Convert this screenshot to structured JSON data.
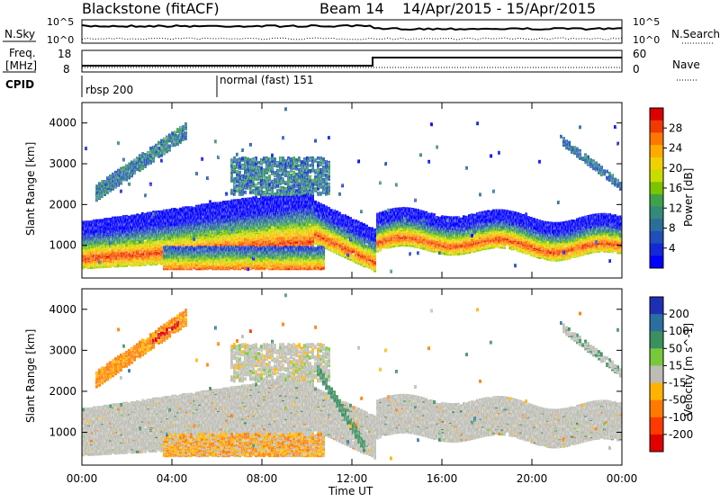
{
  "header": {
    "station": "Blackstone (fitACF)",
    "beam": "Beam 14",
    "period": "14/Apr/2015 - 15/Apr/2015"
  },
  "top_panels": {
    "nsky_label": "N.Sky",
    "nsearch_label": "N.Search",
    "n_ticks_left": [
      "10^5",
      "10^0"
    ],
    "n_ticks_right": [
      "10^5",
      "10^0"
    ],
    "freq_label_1": "Freq.",
    "freq_label_2": "[MHz]",
    "freq_ticks": [
      "18",
      "8"
    ],
    "nave_label": "Nave",
    "nave_ticks": [
      "60",
      "0"
    ],
    "cpid_label": "CPID",
    "cpid_segments": [
      {
        "name": "rbsp 200",
        "start_hour": 0
      },
      {
        "name": "normal (fast) 151",
        "start_hour": 6
      }
    ]
  },
  "chart_data": [
    {
      "type": "heatmap",
      "title": "",
      "xlabel": "Time UT",
      "ylabel": "Slant Range [km]",
      "xlim_hours": [
        0,
        24
      ],
      "ylim_km": [
        200,
        4500
      ],
      "x_ticks": [
        "00:00",
        "04:00",
        "08:00",
        "12:00",
        "16:00",
        "20:00",
        "00:00"
      ],
      "y_ticks": [
        1000,
        2000,
        3000,
        4000
      ],
      "colorbar": {
        "label": "Power [dB]",
        "ticks": [
          "28",
          "24",
          "20",
          "16",
          "12",
          "8",
          "4"
        ],
        "colors": [
          "#d90000",
          "#f03a00",
          "#ff7700",
          "#ffaa00",
          "#f0d000",
          "#c8dc00",
          "#7cc300",
          "#3fa24a",
          "#338a78",
          "#2a6f9a",
          "#1f4fba",
          "#1428d8",
          "#0000ff"
        ]
      },
      "features": [
        {
          "name": "main band",
          "time_hours": [
            0,
            13
          ],
          "range_km": [
            900,
            2200
          ],
          "power_db": 28
        },
        {
          "name": "lower band",
          "time_hours": [
            3.5,
            10.8
          ],
          "range_km": [
            500,
            1000
          ],
          "power_db": 26
        },
        {
          "name": "main band after 13 UT",
          "time_hours": [
            13,
            24
          ],
          "range_km": [
            1100,
            2000
          ],
          "power_db": 22
        },
        {
          "name": "rising streak",
          "time_hours": [
            0.5,
            4.5
          ],
          "range_km": [
            2200,
            3800
          ],
          "power_db": 8
        }
      ]
    },
    {
      "type": "heatmap",
      "title": "",
      "xlabel": "Time UT",
      "ylabel": "Slant Range [km]",
      "xlim_hours": [
        0,
        24
      ],
      "ylim_km": [
        200,
        4500
      ],
      "x_ticks": [
        "00:00",
        "04:00",
        "08:00",
        "12:00",
        "16:00",
        "20:00",
        "00:00"
      ],
      "y_ticks": [
        1000,
        2000,
        3000,
        4000
      ],
      "colorbar": {
        "label": "Velocity [m s^-1]",
        "ticks": [
          "200",
          "100",
          "50",
          "15",
          "-15",
          "-50",
          "-100",
          "-200"
        ],
        "colors": [
          "#1f2fb5",
          "#2a6fa0",
          "#3c8f5f",
          "#78c83c",
          "#bdbdb5",
          "#ffb300",
          "#ff7a00",
          "#ff3a00",
          "#e00000"
        ]
      },
      "features": [
        {
          "name": "ground scatter band",
          "time_hours": [
            0,
            24
          ],
          "range_km": [
            1100,
            2300
          ],
          "velocity_ms": 0
        },
        {
          "name": "lower band",
          "time_hours": [
            3.5,
            10.8
          ],
          "range_km": [
            500,
            1000
          ],
          "velocity_ms": -50
        },
        {
          "name": "green streak",
          "time_hours": [
            10.5,
            12.5
          ],
          "range_km": [
            600,
            2700
          ],
          "velocity_ms": 60
        }
      ]
    }
  ]
}
